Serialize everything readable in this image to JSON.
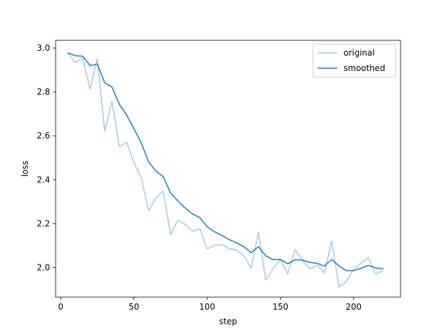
{
  "chart_data": {
    "type": "line",
    "xlabel": "step",
    "ylabel": "loss",
    "xlim": [
      -3.5,
      232
    ],
    "ylim": [
      1.865,
      3.035
    ],
    "xticks": [
      0,
      50,
      100,
      150,
      200
    ],
    "yticks": [
      2.0,
      2.2,
      2.4,
      2.6,
      2.8,
      3.0
    ],
    "ytick_labels": [
      "2.0",
      "2.2",
      "2.4",
      "2.6",
      "2.8",
      "3.0"
    ],
    "xtick_labels": [
      "0",
      "50",
      "100",
      "150",
      "200"
    ],
    "grid": false,
    "legend": "upper right",
    "x": [
      5,
      10,
      15,
      20,
      25,
      30,
      35,
      40,
      45,
      50,
      55,
      60,
      65,
      70,
      75,
      80,
      85,
      90,
      95,
      100,
      105,
      110,
      115,
      120,
      125,
      130,
      135,
      140,
      145,
      150,
      155,
      160,
      165,
      170,
      175,
      180,
      185,
      190,
      195,
      200,
      205,
      210,
      215,
      220
    ],
    "series": [
      {
        "name": "original",
        "color": "#a6c8e0",
        "values": [
          2.977,
          2.933,
          2.955,
          2.812,
          2.952,
          2.622,
          2.757,
          2.552,
          2.57,
          2.478,
          2.408,
          2.259,
          2.318,
          2.348,
          2.15,
          2.215,
          2.197,
          2.165,
          2.176,
          2.084,
          2.102,
          2.104,
          2.085,
          2.081,
          2.053,
          1.997,
          2.162,
          1.943,
          1.994,
          2.038,
          1.971,
          2.082,
          2.032,
          1.994,
          2.011,
          1.975,
          2.12,
          1.911,
          1.935,
          1.992,
          2.02,
          2.045,
          1.97,
          1.985
        ]
      },
      {
        "name": "smoothed",
        "color": "#1f77b4",
        "values": [
          2.977,
          2.965,
          2.963,
          2.92,
          2.927,
          2.842,
          2.822,
          2.744,
          2.695,
          2.632,
          2.567,
          2.481,
          2.439,
          2.414,
          2.339,
          2.303,
          2.271,
          2.244,
          2.227,
          2.185,
          2.163,
          2.146,
          2.127,
          2.113,
          2.095,
          2.067,
          2.095,
          2.053,
          2.036,
          2.037,
          2.017,
          2.035,
          2.034,
          2.023,
          2.019,
          2.006,
          2.037,
          2.007,
          1.985,
          1.986,
          1.996,
          2.01,
          1.998,
          1.994
        ]
      }
    ]
  }
}
